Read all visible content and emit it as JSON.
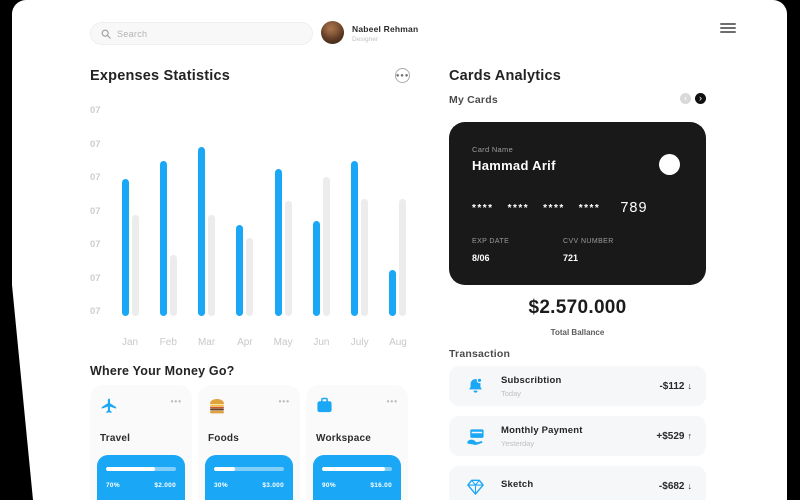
{
  "topbar": {
    "search_placeholder": "Search",
    "user": {
      "name": "Nabeel Rehman",
      "role": "Designer"
    }
  },
  "expenses": {
    "title": "Expenses Statistics"
  },
  "chart_data": {
    "type": "bar",
    "title": "Expenses Statistics",
    "categories": [
      "Jan",
      "Feb",
      "Mar",
      "Apr",
      "May",
      "Jun",
      "July",
      "Aug"
    ],
    "series": [
      {
        "name": "expenses",
        "color": "#1aa7f5",
        "values": [
          81,
          92,
          100,
          54,
          87,
          56,
          92,
          27
        ]
      },
      {
        "name": "comparison",
        "color": "#ececec",
        "values": [
          60,
          36,
          60,
          46,
          68,
          82,
          69,
          69
        ]
      }
    ],
    "y_tick_labels": [
      "07",
      "07",
      "07",
      "07",
      "07",
      "07",
      "07"
    ],
    "ylim": [
      0,
      100
    ],
    "grid": false,
    "legend": false,
    "note": "values are percent of tallest bar; y axis shows repeated 07 placeholder ticks"
  },
  "money_go": {
    "title": "Where Your Money Go?",
    "cards": [
      {
        "label": "Travel",
        "icon": "airplane-icon",
        "percent": "70%",
        "amount": "$2.000",
        "progress": 70
      },
      {
        "label": "Foods",
        "icon": "burger-icon",
        "percent": "30%",
        "amount": "$3.000",
        "progress": 30
      },
      {
        "label": "Workspace",
        "icon": "briefcase-icon",
        "percent": "90%",
        "amount": "$16.00",
        "progress": 90
      }
    ],
    "options_icon": "•••"
  },
  "cards_analytics": {
    "title": "Cards Analytics",
    "my_cards_label": "My Cards",
    "prev_arrow": "‹",
    "next_arrow": "›",
    "card": {
      "name_label": "Card Name",
      "name": "Hammad Arif",
      "number_groups": [
        "****",
        "****",
        "****",
        "****"
      ],
      "number_tail": "789",
      "exp_label": "EXP DATE",
      "exp_value": "8/06",
      "cvv_label": "CVV NUMBER",
      "cvv_value": "721"
    },
    "balance": "$2.570.000",
    "balance_label": "Total Ballance"
  },
  "transactions": {
    "title": "Transaction",
    "items": [
      {
        "icon": "bell-icon",
        "name": "Subscribtion",
        "date": "Today",
        "amount": "-$112",
        "arrow": "↓"
      },
      {
        "icon": "card-hand-icon",
        "name": "Monthly Payment",
        "date": "Yesterday",
        "amount": "+$529",
        "arrow": "↑"
      },
      {
        "icon": "diamond-icon",
        "name": "Sketch",
        "date": "",
        "amount": "-$682",
        "arrow": "↓"
      }
    ]
  },
  "colors": {
    "accent": "#1aa7f5",
    "bar_muted": "#ececec",
    "card_black": "#191919",
    "row_bg": "#f6f7f9",
    "page_edge": "#000000"
  }
}
